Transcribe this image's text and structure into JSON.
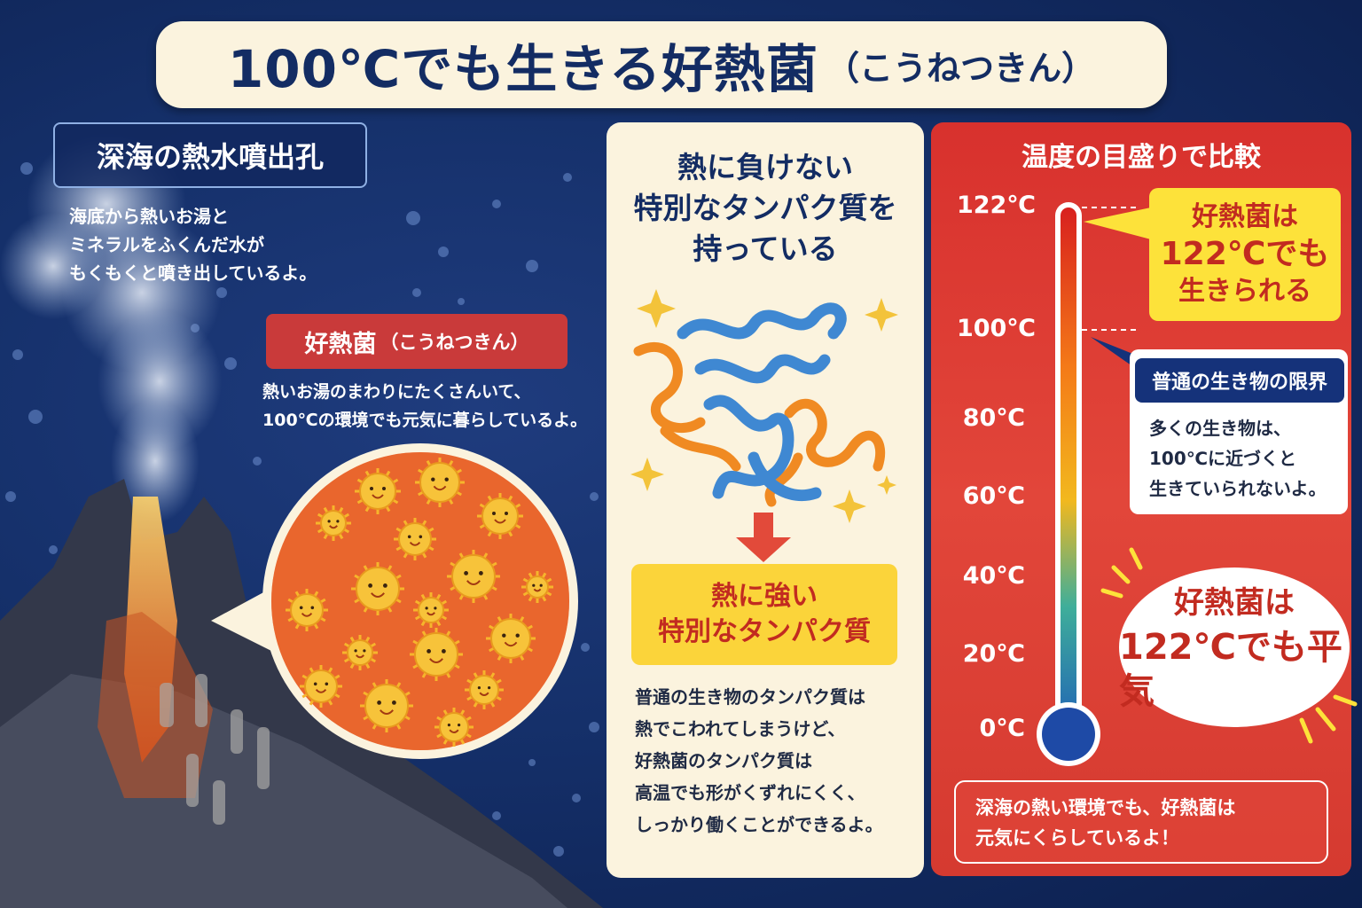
{
  "title": {
    "main": "100℃でも生きる好熱菌",
    "reading": "（こうねつきん）"
  },
  "vent": {
    "label": "深海の熱水噴出孔",
    "desc": [
      "海底から熱いお湯と",
      "ミネラルをふくんだ水が",
      "もくもくと噴き出しているよ。"
    ]
  },
  "thermophile": {
    "label": "好熱菌",
    "reading": "（こうねつきん）",
    "desc": [
      "熱いお湯のまわりにたくさんいて、",
      "100℃の環境でも元気に暮らしているよ。"
    ]
  },
  "protein": {
    "heading": [
      "熱に負けない",
      "特別なタンパク質を",
      "持っている"
    ],
    "resist_box": [
      "熱に強い",
      "特別なタンパク質"
    ],
    "desc": [
      "普通の生き物のタンパク質は",
      "熱でこわれてしまうけど、",
      "好熱菌のタンパク質は",
      "高温でも形がくずれにくく、",
      "しっかり働くことができるよ。"
    ]
  },
  "scale": {
    "title": "温度の目盛りで比較",
    "ticks": [
      "122℃",
      "100℃",
      "80℃",
      "60℃",
      "40℃",
      "20℃",
      "0℃"
    ],
    "callout": {
      "line1": "好熱菌は",
      "line2": "122℃でも",
      "line3": "生きられる"
    },
    "limit": {
      "label": "普通の生き物の限界",
      "desc": [
        "多くの生き物は、",
        "100℃に近づくと",
        "生きていられないよ。"
      ]
    },
    "oval": {
      "line1": "好熱菌は",
      "line2": "122℃でも平気"
    },
    "bottom": [
      "深海の熱い環境でも、好熱菌は",
      "元気にくらしているよ！"
    ]
  },
  "colors": {
    "navy": "#132c63",
    "red": "#d8312d",
    "yellow": "#fde23a",
    "cream": "#fbf3de"
  }
}
